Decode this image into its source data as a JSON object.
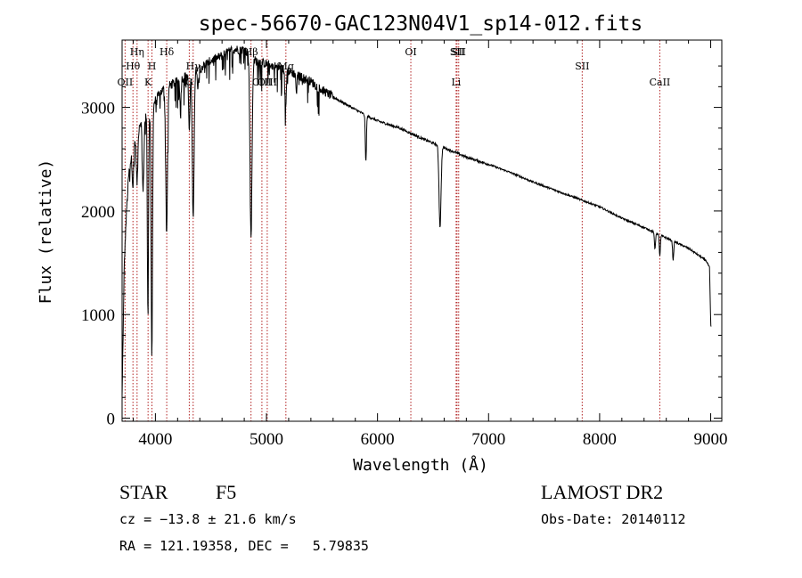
{
  "chart_data": {
    "type": "line",
    "title": "spec-56670-GAC123N04V1_sp14-012.fits",
    "xlabel": "Wavelength (Å)",
    "ylabel": "Flux (relative)",
    "xlim": [
      3700,
      9100
    ],
    "ylim": [
      -30,
      3650
    ],
    "xticks": [
      4000,
      5000,
      6000,
      7000,
      8000,
      9000
    ],
    "yticks": [
      0,
      1000,
      2000,
      3000
    ],
    "continuum": {
      "x": [
        3700,
        3720,
        3740,
        3760,
        3780,
        3800,
        3830,
        3860,
        3900,
        3940,
        3970,
        3990,
        4050,
        4100,
        4200,
        4300,
        4400,
        4500,
        4600,
        4700,
        4800,
        4900,
        5000,
        5100,
        5200,
        5300,
        5400,
        5500,
        5600,
        5700,
        5800,
        5900,
        6000,
        6200,
        6400,
        6600,
        6800,
        7000,
        7200,
        7400,
        7600,
        7800,
        8000,
        8200,
        8400,
        8600,
        8800,
        8960,
        8990,
        9000,
        9010
      ],
      "y": [
        200,
        1500,
        2000,
        2350,
        2500,
        2600,
        2750,
        2850,
        2900,
        2900,
        3000,
        3050,
        3150,
        3200,
        3250,
        3320,
        3380,
        3450,
        3500,
        3560,
        3560,
        3450,
        3420,
        3390,
        3350,
        3300,
        3250,
        3170,
        3100,
        3040,
        2980,
        2920,
        2870,
        2800,
        2700,
        2610,
        2520,
        2450,
        2370,
        2280,
        2200,
        2120,
        2040,
        1930,
        1840,
        1740,
        1640,
        1520,
        1450,
        900,
        850
      ]
    },
    "absorption_features": [
      {
        "x": 3798,
        "depth": 350,
        "width": 6
      },
      {
        "x": 3835,
        "depth": 500,
        "width": 7
      },
      {
        "x": 3889,
        "depth": 700,
        "width": 7
      },
      {
        "x": 3933,
        "depth": 1900,
        "width": 5
      },
      {
        "x": 3968,
        "depth": 2400,
        "width": 6
      },
      {
        "x": 4101,
        "depth": 1400,
        "width": 8
      },
      {
        "x": 4226,
        "depth": 250,
        "width": 5
      },
      {
        "x": 4305,
        "depth": 550,
        "width": 6
      },
      {
        "x": 4340,
        "depth": 1400,
        "width": 8
      },
      {
        "x": 4383,
        "depth": 220,
        "width": 4
      },
      {
        "x": 4861,
        "depth": 1750,
        "width": 9
      },
      {
        "x": 5172,
        "depth": 350,
        "width": 6
      },
      {
        "x": 5270,
        "depth": 200,
        "width": 4
      },
      {
        "x": 5895,
        "depth": 450,
        "width": 5
      },
      {
        "x": 6563,
        "depth": 780,
        "width": 9
      },
      {
        "x": 8498,
        "depth": 160,
        "width": 5
      },
      {
        "x": 8542,
        "depth": 200,
        "width": 5
      },
      {
        "x": 8662,
        "depth": 180,
        "width": 5
      }
    ],
    "spectral_lines": [
      {
        "label": "OII",
        "x": 3727,
        "row": 3
      },
      {
        "label": "Hθ",
        "x": 3798,
        "row": 2
      },
      {
        "label": "Hη",
        "x": 3835,
        "row": 1
      },
      {
        "label": "K",
        "x": 3934,
        "row": 3
      },
      {
        "label": "H",
        "x": 3969,
        "row": 2
      },
      {
        "label": "Hδ",
        "x": 4102,
        "row": 1
      },
      {
        "label": "G",
        "x": 4305,
        "row": 3
      },
      {
        "label": "Hγ",
        "x": 4340,
        "row": 2
      },
      {
        "label": "Hβ",
        "x": 4861,
        "row": 1
      },
      {
        "label": "OIII",
        "x": 4959,
        "row": 3
      },
      {
        "label": "OIII",
        "x": 5007,
        "row": 3
      },
      {
        "label": "Mg",
        "x": 5175,
        "row": 2
      },
      {
        "label": "OI",
        "x": 6300,
        "row": 1
      },
      {
        "label": "SII",
        "x": 6716,
        "row": 1
      },
      {
        "label": "Li",
        "x": 6708,
        "row": 3
      },
      {
        "label": "SII",
        "x": 6731,
        "row": 1
      },
      {
        "label": "SII",
        "x": 7843,
        "row": 2
      },
      {
        "label": "CaII",
        "x": 8542,
        "row": 3
      }
    ]
  },
  "info": {
    "class": "STAR",
    "subclass": "F5",
    "survey": "LAMOST DR2",
    "cz": "cz = −13.8 ± 21.6 km/s",
    "obs_date": "Obs-Date: 20140112",
    "coords": "RA = 121.19358, DEC =   5.79835"
  },
  "colors": {
    "spectrum": "#000000",
    "line_markers": "#b22222"
  }
}
